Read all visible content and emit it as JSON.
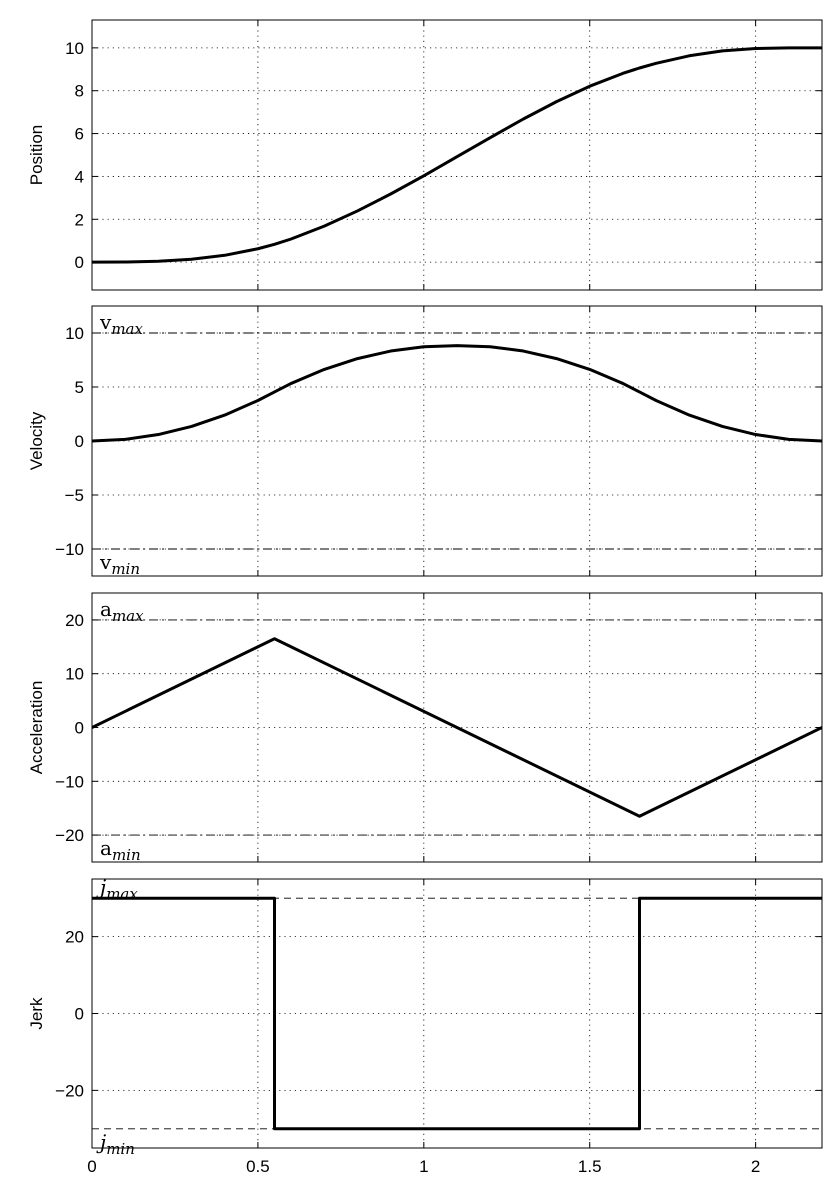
{
  "chart_data": [
    {
      "type": "line",
      "ylabel": "Position",
      "xlim": [
        0,
        2.2
      ],
      "ylim": [
        -1.3,
        11.3
      ],
      "yticks": [
        "0",
        "2",
        "4",
        "6",
        "8",
        "10"
      ],
      "ytick_values": [
        0,
        2,
        4,
        6,
        8,
        10
      ],
      "xticks": [
        0,
        0.5,
        1,
        1.5,
        2
      ],
      "grid": true,
      "series": [
        {
          "x": [
            0,
            0.1,
            0.2,
            0.3,
            0.4,
            0.5,
            0.55,
            0.6,
            0.7,
            0.8,
            0.9,
            1.0,
            1.1,
            1.2,
            1.3,
            1.4,
            1.5,
            1.6,
            1.65,
            1.7,
            1.8,
            1.9,
            2.0,
            2.1,
            2.2
          ],
          "y": [
            0,
            0.005,
            0.04,
            0.135,
            0.32,
            0.625,
            0.83,
            1.08,
            1.68,
            2.39,
            3.18,
            4.03,
            4.92,
            5.81,
            6.68,
            7.49,
            8.21,
            8.81,
            9.06,
            9.28,
            9.63,
            9.86,
            9.97,
            10.0,
            10.0
          ]
        }
      ],
      "limits": []
    },
    {
      "type": "line",
      "ylabel": "Velocity",
      "xlim": [
        0,
        2.2
      ],
      "ylim": [
        -12.5,
        12.5
      ],
      "yticks": [
        "−10",
        "−5",
        "0",
        "5",
        "10"
      ],
      "ytick_values": [
        -10,
        -5,
        0,
        5,
        10
      ],
      "xticks": [
        0,
        0.5,
        1,
        1.5,
        2
      ],
      "grid": true,
      "series": [
        {
          "x": [
            0,
            0.1,
            0.2,
            0.3,
            0.4,
            0.5,
            0.55,
            0.6,
            0.7,
            0.8,
            0.9,
            1.0,
            1.1,
            1.2,
            1.3,
            1.4,
            1.5,
            1.6,
            1.65,
            1.7,
            1.8,
            1.9,
            2.0,
            2.1,
            2.2
          ],
          "y": [
            0,
            0.15,
            0.6,
            1.35,
            2.4,
            3.75,
            4.54,
            5.33,
            6.63,
            7.63,
            8.33,
            8.73,
            8.83,
            8.73,
            8.33,
            7.63,
            6.63,
            5.33,
            4.54,
            3.75,
            2.4,
            1.35,
            0.6,
            0.15,
            0
          ]
        }
      ],
      "limits": [
        {
          "value": 10,
          "symbol": "v",
          "sub": "max",
          "style": "dashdot",
          "label_pos": "above"
        },
        {
          "value": -10,
          "symbol": "v",
          "sub": "min",
          "style": "dashdot",
          "label_pos": "below"
        }
      ]
    },
    {
      "type": "line",
      "ylabel": "Acceleration",
      "xlim": [
        0,
        2.2
      ],
      "ylim": [
        -25,
        25
      ],
      "yticks": [
        "−20",
        "−10",
        "0",
        "10",
        "20"
      ],
      "ytick_values": [
        -20,
        -10,
        0,
        10,
        20
      ],
      "xticks": [
        0,
        0.5,
        1,
        1.5,
        2
      ],
      "grid": true,
      "series": [
        {
          "x": [
            0,
            0.55,
            1.65,
            2.2
          ],
          "y": [
            0,
            16.5,
            -16.5,
            0
          ]
        }
      ],
      "limits": [
        {
          "value": 20,
          "symbol": "a",
          "sub": "max",
          "style": "dashdot",
          "label_pos": "above"
        },
        {
          "value": -20,
          "symbol": "a",
          "sub": "min",
          "style": "dashdot",
          "label_pos": "below"
        }
      ]
    },
    {
      "type": "line",
      "ylabel": "Jerk",
      "xlim": [
        0,
        2.2
      ],
      "ylim": [
        -35,
        35
      ],
      "yticks": [
        "−20",
        "0",
        "20"
      ],
      "ytick_values": [
        -20,
        0,
        20
      ],
      "xticks": [
        0,
        0.5,
        1,
        1.5,
        2
      ],
      "xticklabels": [
        "0",
        "0.5",
        "1",
        "1.5",
        "2"
      ],
      "grid": true,
      "series": [
        {
          "x": [
            0,
            0.55,
            0.55,
            1.65,
            1.65,
            2.2
          ],
          "y": [
            30,
            30,
            -30,
            -30,
            30,
            30
          ]
        }
      ],
      "limits": [
        {
          "value": 30,
          "symbol": "j",
          "sub": "max",
          "style": "dashed",
          "label_pos": "above"
        },
        {
          "value": -30,
          "symbol": "j",
          "sub": "min",
          "style": "dashed",
          "label_pos": "below"
        }
      ]
    }
  ]
}
